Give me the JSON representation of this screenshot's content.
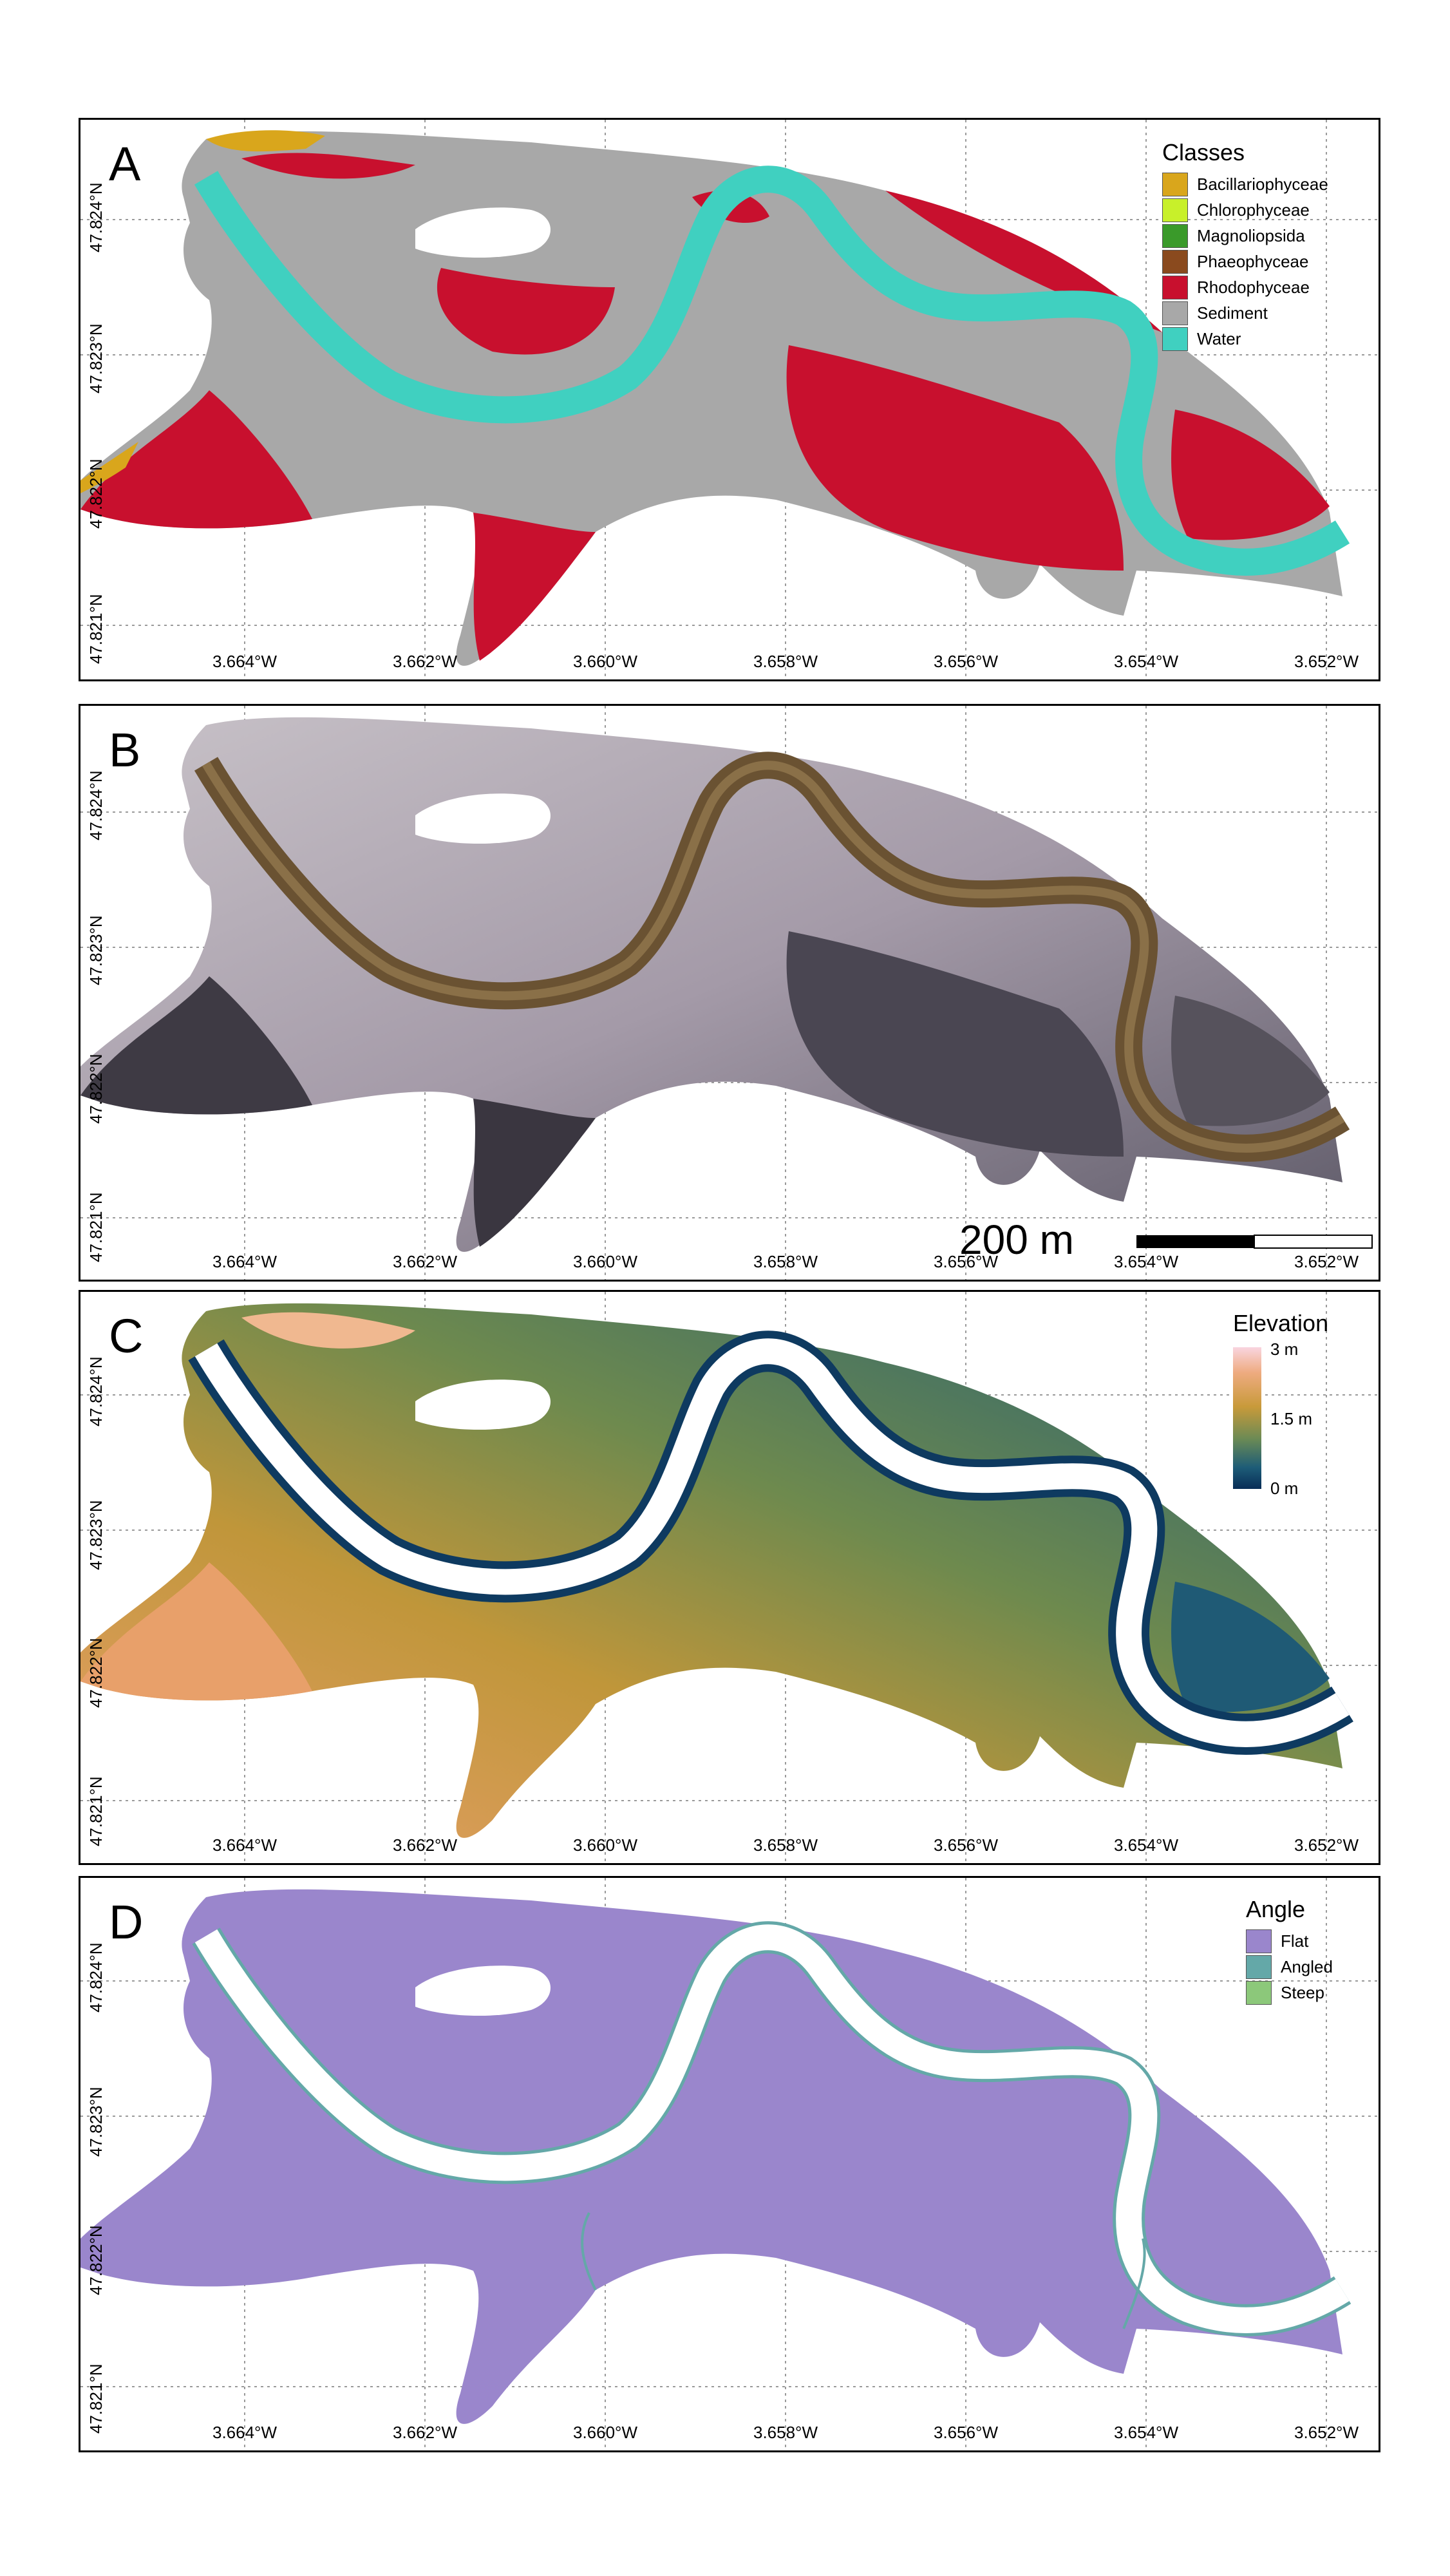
{
  "panels": {
    "a": {
      "label": "A"
    },
    "b": {
      "label": "B"
    },
    "c": {
      "label": "C"
    },
    "d": {
      "label": "D"
    }
  },
  "x_ticks": [
    "3.664°W",
    "3.662°W",
    "3.660°W",
    "3.658°W",
    "3.656°W",
    "3.654°W",
    "3.652°W"
  ],
  "y_ticks": [
    "47.824°N",
    "47.823°N",
    "47.822°N",
    "47.821°N"
  ],
  "legend_classes": {
    "title": "Classes",
    "items": [
      {
        "label": "Bacillariophyceae",
        "color": "#d9a61c"
      },
      {
        "label": "Chlorophyceae",
        "color": "#c8f02a"
      },
      {
        "label": "Magnoliopsida",
        "color": "#3a9a2a"
      },
      {
        "label": "Phaeophyceae",
        "color": "#8a4a1e"
      },
      {
        "label": "Rhodophyceae",
        "color": "#c8102e"
      },
      {
        "label": "Sediment",
        "color": "#a8a8a8"
      },
      {
        "label": "Water",
        "color": "#40d0c0"
      }
    ]
  },
  "legend_elevation": {
    "title": "Elevation",
    "max_label": "3 m",
    "mid_label": "1.5 m",
    "min_label": "0 m"
  },
  "legend_angle": {
    "title": "Angle",
    "items": [
      {
        "label": "Flat",
        "color": "#9a86cc"
      },
      {
        "label": "Angled",
        "color": "#64a8a8"
      },
      {
        "label": "Steep",
        "color": "#8cc87a"
      }
    ]
  },
  "scalebar": {
    "label": "200 m"
  }
}
